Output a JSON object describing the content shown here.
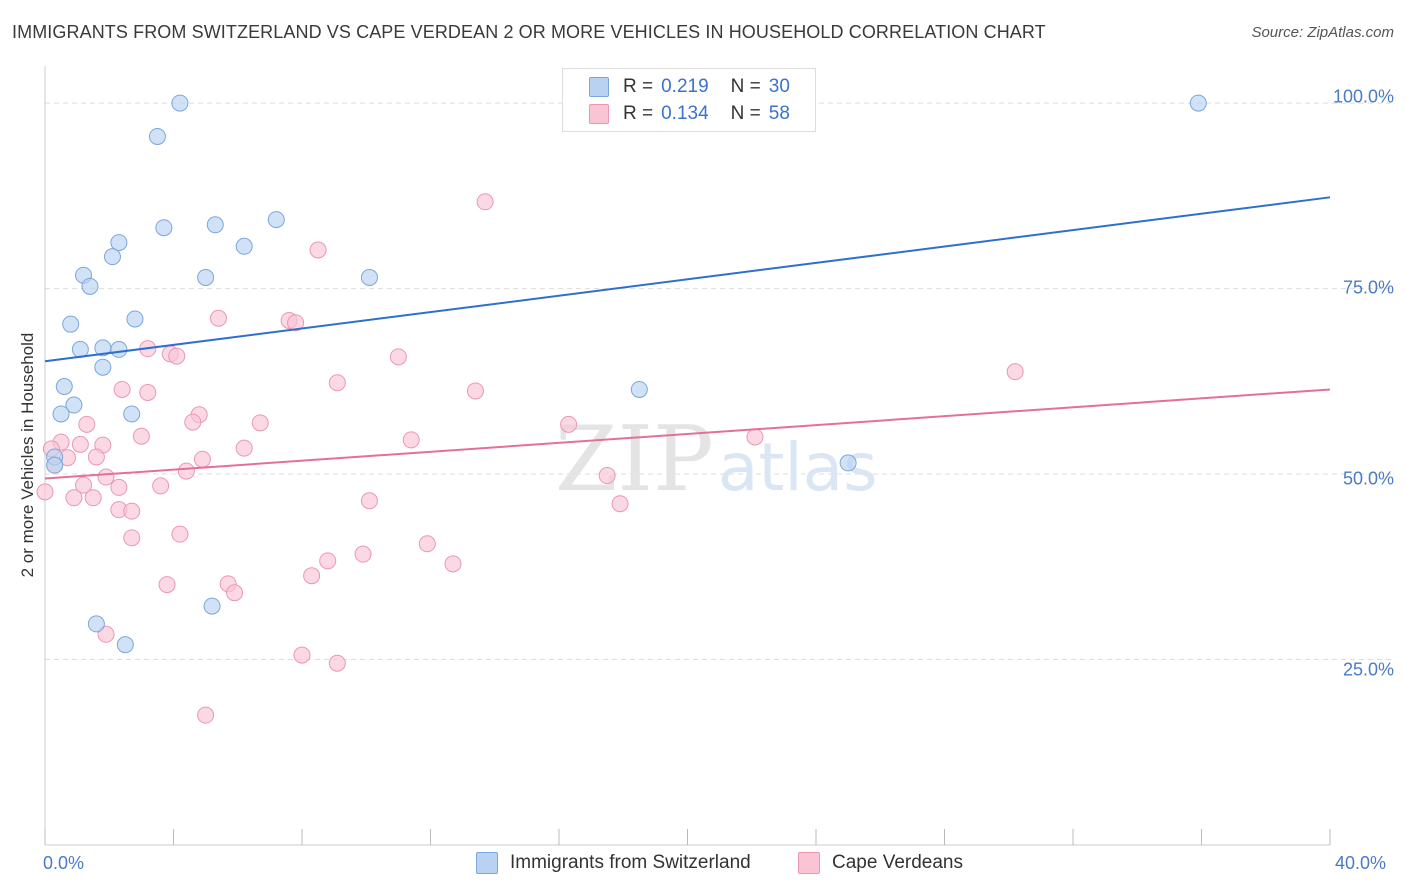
{
  "title": "IMMIGRANTS FROM SWITZERLAND VS CAPE VERDEAN 2 OR MORE VEHICLES IN HOUSEHOLD CORRELATION CHART",
  "source": "Source: ZipAtlas.com",
  "colors": {
    "blue_fill": "#b9d2f2",
    "blue_stroke": "#7aa6dd",
    "blue_line": "#2e6fd0",
    "pink_fill": "#f9c5d5",
    "pink_stroke": "#ec97b2",
    "pink_line": "#e46f98",
    "tick_text": "#4a7ac8",
    "grid": "#dddddd"
  },
  "legend": {
    "rows": [
      {
        "r_label": "R =",
        "r_value": "0.219",
        "n_label": "N =",
        "n_value": "30",
        "color": "#b9d2f2",
        "border": "#7aa6dd"
      },
      {
        "r_label": "R =",
        "r_value": "0.134",
        "n_label": "N =",
        "n_value": "58",
        "color": "#f9c5d5",
        "border": "#ec97b2"
      }
    ]
  },
  "bottom_legend": [
    "Immigrants from Switzerland",
    "Cape Verdeans"
  ],
  "watermark": "ZIPatlas",
  "chart_data": {
    "type": "scatter",
    "title": "IMMIGRANTS FROM SWITZERLAND VS CAPE VERDEAN 2 OR MORE VEHICLES IN HOUSEHOLD CORRELATION CHART",
    "xlabel": "",
    "ylabel": "2 or more Vehicles in Household",
    "xlim": [
      0,
      40
    ],
    "ylim": [
      0,
      105
    ],
    "x_tick_labels": [
      "0.0%",
      "40.0%"
    ],
    "y_ticks": [
      25,
      50,
      75,
      100
    ],
    "y_tick_labels": [
      "25.0%",
      "50.0%",
      "75.0%",
      "100.0%"
    ],
    "grid": true,
    "legend_placement": "top-center",
    "series": [
      {
        "name": "Immigrants from Switzerland",
        "r": 0.219,
        "n": 30,
        "trend": {
          "x": [
            0,
            40
          ],
          "y": [
            65.2,
            87.3
          ]
        },
        "points": [
          {
            "x": 4.2,
            "y": 100.0
          },
          {
            "x": 35.9,
            "y": 100.0
          },
          {
            "x": 3.5,
            "y": 95.5
          },
          {
            "x": 3.7,
            "y": 83.2
          },
          {
            "x": 5.3,
            "y": 83.6
          },
          {
            "x": 7.2,
            "y": 84.3
          },
          {
            "x": 2.3,
            "y": 81.2
          },
          {
            "x": 6.2,
            "y": 80.7
          },
          {
            "x": 2.1,
            "y": 79.3
          },
          {
            "x": 1.2,
            "y": 76.8
          },
          {
            "x": 5.0,
            "y": 76.5
          },
          {
            "x": 10.1,
            "y": 76.5
          },
          {
            "x": 1.4,
            "y": 75.3
          },
          {
            "x": 2.8,
            "y": 70.9
          },
          {
            "x": 0.8,
            "y": 70.2
          },
          {
            "x": 1.1,
            "y": 66.8
          },
          {
            "x": 1.8,
            "y": 67.0
          },
          {
            "x": 2.3,
            "y": 66.8
          },
          {
            "x": 1.8,
            "y": 64.4
          },
          {
            "x": 0.6,
            "y": 61.8
          },
          {
            "x": 18.5,
            "y": 61.4
          },
          {
            "x": 0.9,
            "y": 59.3
          },
          {
            "x": 0.5,
            "y": 58.1
          },
          {
            "x": 2.7,
            "y": 58.1
          },
          {
            "x": 0.3,
            "y": 52.3
          },
          {
            "x": 0.3,
            "y": 51.2
          },
          {
            "x": 25.0,
            "y": 51.5
          },
          {
            "x": 5.2,
            "y": 32.2
          },
          {
            "x": 1.6,
            "y": 29.8
          },
          {
            "x": 2.5,
            "y": 27.0
          }
        ]
      },
      {
        "name": "Cape Verdeans",
        "r": 0.134,
        "n": 58,
        "trend": {
          "x": [
            0,
            40
          ],
          "y": [
            49.4,
            61.4
          ]
        },
        "points": [
          {
            "x": 13.7,
            "y": 86.7
          },
          {
            "x": 8.5,
            "y": 80.2
          },
          {
            "x": 5.4,
            "y": 71.0
          },
          {
            "x": 7.6,
            "y": 70.7
          },
          {
            "x": 7.8,
            "y": 70.4
          },
          {
            "x": 3.2,
            "y": 66.9
          },
          {
            "x": 3.9,
            "y": 66.2
          },
          {
            "x": 4.1,
            "y": 65.9
          },
          {
            "x": 11.0,
            "y": 65.8
          },
          {
            "x": 30.2,
            "y": 63.8
          },
          {
            "x": 9.1,
            "y": 62.3
          },
          {
            "x": 2.4,
            "y": 61.4
          },
          {
            "x": 13.4,
            "y": 61.2
          },
          {
            "x": 3.2,
            "y": 61.0
          },
          {
            "x": 4.8,
            "y": 58.0
          },
          {
            "x": 1.3,
            "y": 56.7
          },
          {
            "x": 4.6,
            "y": 57.0
          },
          {
            "x": 6.7,
            "y": 56.9
          },
          {
            "x": 16.3,
            "y": 56.7
          },
          {
            "x": 3.0,
            "y": 55.1
          },
          {
            "x": 22.1,
            "y": 55.0
          },
          {
            "x": 11.4,
            "y": 54.6
          },
          {
            "x": 0.5,
            "y": 54.3
          },
          {
            "x": 1.1,
            "y": 54.0
          },
          {
            "x": 1.8,
            "y": 53.9
          },
          {
            "x": 6.2,
            "y": 53.5
          },
          {
            "x": 0.2,
            "y": 53.4
          },
          {
            "x": 0.7,
            "y": 52.2
          },
          {
            "x": 1.6,
            "y": 52.3
          },
          {
            "x": 4.9,
            "y": 52.0
          },
          {
            "x": 0.3,
            "y": 51.2
          },
          {
            "x": 4.4,
            "y": 50.4
          },
          {
            "x": 17.5,
            "y": 49.8
          },
          {
            "x": 1.9,
            "y": 49.6
          },
          {
            "x": 1.2,
            "y": 48.5
          },
          {
            "x": 3.6,
            "y": 48.4
          },
          {
            "x": 2.3,
            "y": 48.2
          },
          {
            "x": 0.0,
            "y": 47.6
          },
          {
            "x": 0.9,
            "y": 46.8
          },
          {
            "x": 1.5,
            "y": 46.8
          },
          {
            "x": 10.1,
            "y": 46.4
          },
          {
            "x": 17.9,
            "y": 46.0
          },
          {
            "x": 2.3,
            "y": 45.2
          },
          {
            "x": 2.7,
            "y": 45.0
          },
          {
            "x": 4.2,
            "y": 41.9
          },
          {
            "x": 2.7,
            "y": 41.4
          },
          {
            "x": 11.9,
            "y": 40.6
          },
          {
            "x": 9.9,
            "y": 39.2
          },
          {
            "x": 8.8,
            "y": 38.3
          },
          {
            "x": 12.7,
            "y": 37.9
          },
          {
            "x": 8.3,
            "y": 36.3
          },
          {
            "x": 3.8,
            "y": 35.1
          },
          {
            "x": 5.7,
            "y": 35.2
          },
          {
            "x": 5.9,
            "y": 34.0
          },
          {
            "x": 1.9,
            "y": 28.4
          },
          {
            "x": 8.0,
            "y": 25.6
          },
          {
            "x": 9.1,
            "y": 24.5
          },
          {
            "x": 5.0,
            "y": 17.5
          }
        ]
      }
    ]
  }
}
